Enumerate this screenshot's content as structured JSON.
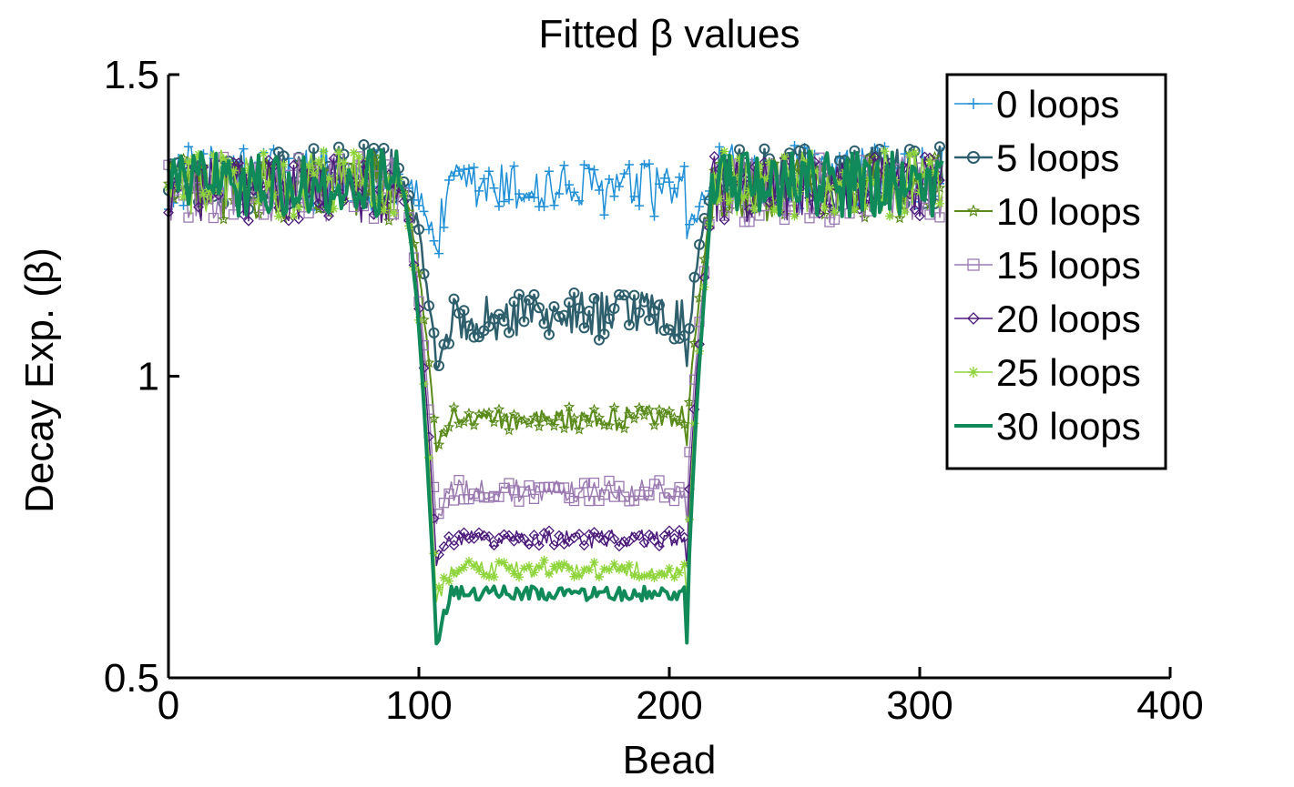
{
  "chart_data": {
    "type": "line",
    "title": "Fitted β values",
    "xlabel": "Bead",
    "ylabel": "Decay Exp. (β)",
    "xlim": [
      0,
      400
    ],
    "ylim": [
      0.5,
      1.5
    ],
    "xticks": [
      0,
      100,
      200,
      300,
      400
    ],
    "xtick_labels": [
      "0",
      "100",
      "200",
      "300",
      "400"
    ],
    "yticks": [
      0.5,
      1,
      1.5
    ],
    "ytick_labels": [
      "0.5",
      "1",
      "1.5"
    ],
    "grid": false,
    "legend_position": "top-right",
    "segments": {
      "outer_left": [
        0,
        92
      ],
      "drop": [
        92,
        107
      ],
      "inner": [
        107,
        207
      ],
      "rise": [
        207,
        217
      ],
      "outer_right": [
        217,
        309
      ]
    },
    "series": [
      {
        "name": "0 loops",
        "color": "#1f8fd6",
        "marker": "plus",
        "line_width": 1.5,
        "outer_mean": 1.33,
        "inner_mean": 1.31,
        "inner_dip": 1.22,
        "noise": 0.045
      },
      {
        "name": "5 loops",
        "color": "#2e5f6c",
        "marker": "circle",
        "line_width": 2.5,
        "outer_mean": 1.33,
        "inner_mean": 1.1,
        "inner_dip": 1.02,
        "noise": 0.04
      },
      {
        "name": "10 loops",
        "color": "#5a8a1a",
        "marker": "star",
        "line_width": 2,
        "outer_mean": 1.31,
        "inner_mean": 0.93,
        "inner_dip": 0.88,
        "noise": 0.02
      },
      {
        "name": "15 loops",
        "color": "#9a7ab0",
        "marker": "square",
        "line_width": 1.5,
        "outer_mean": 1.31,
        "inner_mean": 0.81,
        "inner_dip": 0.76,
        "noise": 0.018
      },
      {
        "name": "20 loops",
        "color": "#4b1a7a",
        "marker": "diamond",
        "line_width": 1.5,
        "outer_mean": 1.31,
        "inner_mean": 0.73,
        "inner_dip": 0.69,
        "noise": 0.015
      },
      {
        "name": "25 loops",
        "color": "#8fd43a",
        "marker": "asterisk",
        "line_width": 1.5,
        "outer_mean": 1.32,
        "inner_mean": 0.68,
        "inner_dip": 0.63,
        "noise": 0.015
      },
      {
        "name": "30 loops",
        "color": "#118a5a",
        "marker": "none",
        "line_width": 4,
        "outer_mean": 1.32,
        "inner_mean": 0.64,
        "inner_dip": 0.56,
        "noise": 0.012
      }
    ]
  }
}
